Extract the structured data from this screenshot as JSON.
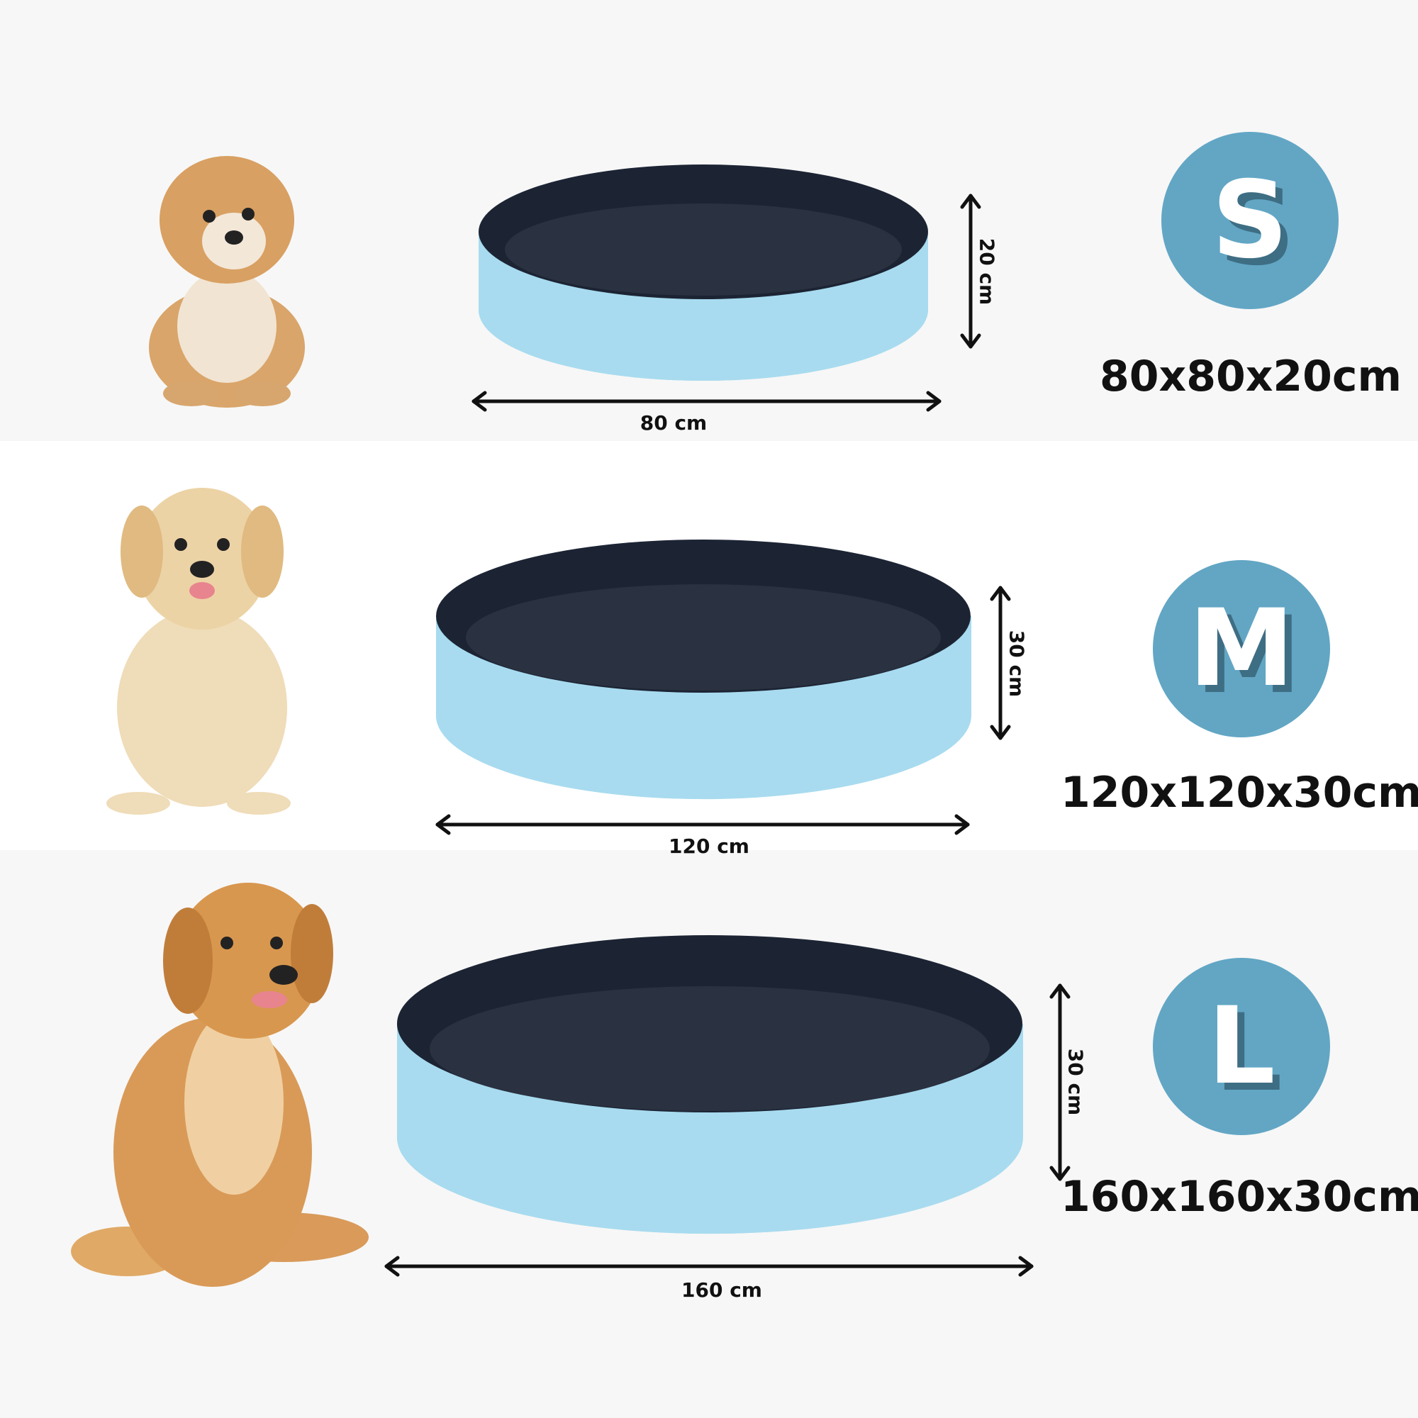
{
  "colors": {
    "badge": "#62a6c4",
    "badge_shadow": "#3e6e84",
    "pool_outer": "#a8dbef",
    "pool_inner": "#1c2434",
    "band_gray": "#f7f7f7",
    "band_white": "#ffffff"
  },
  "sizes": [
    {
      "letter": "S",
      "dimensions": "80x80x20cm",
      "width_label": "80 cm",
      "height_label": "20 cm",
      "dog": "small-fluffy-puppy"
    },
    {
      "letter": "M",
      "dimensions": "120x120x30cm",
      "width_label": "120 cm",
      "height_label": "30 cm",
      "dog": "golden-retriever-puppy"
    },
    {
      "letter": "L",
      "dimensions": "160x160x30cm",
      "width_label": "160 cm",
      "height_label": "30 cm",
      "dog": "adult-golden-retriever"
    }
  ]
}
